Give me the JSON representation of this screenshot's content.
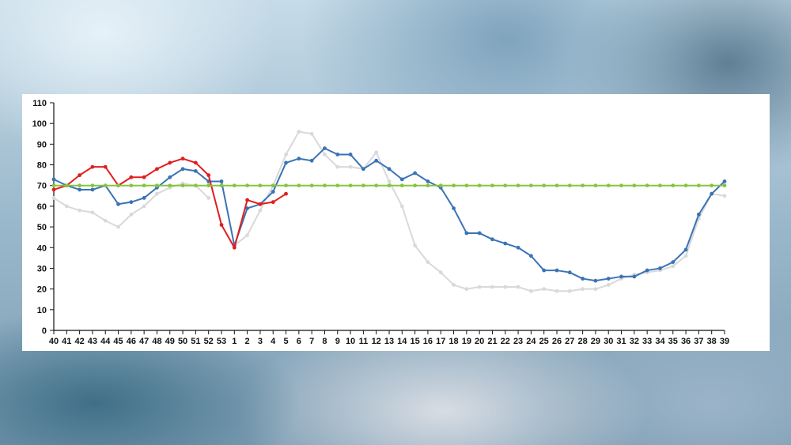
{
  "chart_data": {
    "type": "line",
    "title": "",
    "xlabel": "",
    "ylabel": "",
    "ylim": [
      0,
      110
    ],
    "yticks": [
      0,
      10,
      20,
      30,
      40,
      50,
      60,
      70,
      80,
      90,
      100,
      110
    ],
    "grid": false,
    "legend": "none",
    "categories": [
      "40",
      "41",
      "42",
      "43",
      "44",
      "45",
      "46",
      "47",
      "48",
      "49",
      "50",
      "51",
      "52",
      "53",
      "1",
      "2",
      "3",
      "4",
      "5",
      "6",
      "7",
      "8",
      "9",
      "10",
      "11",
      "12",
      "13",
      "14",
      "15",
      "16",
      "17",
      "18",
      "19",
      "20",
      "21",
      "22",
      "23",
      "24",
      "25",
      "26",
      "27",
      "28",
      "29",
      "30",
      "31",
      "32",
      "33",
      "34",
      "35",
      "36",
      "37",
      "38",
      "39"
    ],
    "series": [
      {
        "color": "#d9d9d9",
        "values": [
          64,
          60,
          58,
          57,
          53,
          50,
          56,
          60,
          66,
          69,
          71,
          70,
          64,
          null,
          41,
          46,
          58,
          70,
          85,
          96,
          95,
          85,
          79,
          79,
          78,
          86,
          72,
          60,
          41,
          33,
          28,
          22,
          20,
          21,
          21,
          21,
          21,
          19,
          20,
          19,
          19,
          20,
          20,
          22,
          25,
          27,
          28,
          29,
          31,
          36,
          54,
          66,
          65
        ]
      },
      {
        "color": "#3a73b5",
        "values": [
          73,
          70,
          68,
          68,
          70,
          61,
          62,
          64,
          69,
          74,
          78,
          77,
          72,
          72,
          41,
          59,
          61,
          67,
          81,
          83,
          82,
          88,
          85,
          85,
          78,
          82,
          78,
          73,
          76,
          72,
          69,
          59,
          47,
          47,
          44,
          42,
          40,
          36,
          29,
          29,
          28,
          25,
          24,
          25,
          26,
          26,
          29,
          30,
          33,
          39,
          56,
          66,
          72
        ]
      },
      {
        "color": "#e01e1e",
        "values": [
          68,
          70,
          75,
          79,
          79,
          70,
          74,
          74,
          78,
          81,
          83,
          81,
          75,
          51,
          40,
          63,
          61,
          62,
          66,
          null,
          null,
          null,
          null,
          null,
          null,
          null,
          null,
          null,
          null,
          null,
          null,
          null,
          null,
          null,
          null,
          null,
          null,
          null,
          null,
          null,
          null,
          null,
          null,
          null,
          null,
          null,
          null,
          null,
          null,
          null,
          null,
          null,
          null
        ]
      },
      {
        "color": "#86c441",
        "values": [
          70,
          70,
          70,
          70,
          70,
          70,
          70,
          70,
          70,
          70,
          70,
          70,
          70,
          70,
          70,
          70,
          70,
          70,
          70,
          70,
          70,
          70,
          70,
          70,
          70,
          70,
          70,
          70,
          70,
          70,
          70,
          70,
          70,
          70,
          70,
          70,
          70,
          70,
          70,
          70,
          70,
          70,
          70,
          70,
          70,
          70,
          70,
          70,
          70,
          70,
          70,
          70,
          70
        ]
      }
    ]
  }
}
